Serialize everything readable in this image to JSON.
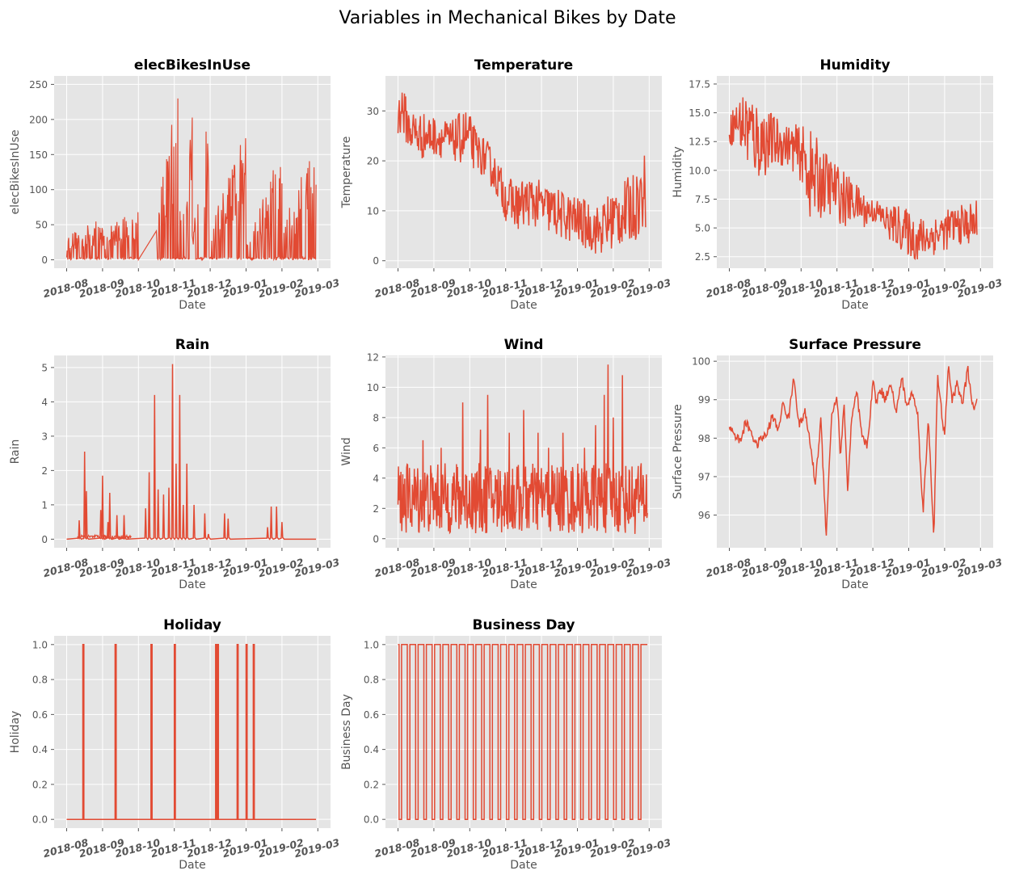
{
  "figure": {
    "title": "Variables in Mechanical Bikes by Date",
    "line_color": "#E24A33",
    "panel_bg": "#E5E5E5",
    "grid_color": "#FFFFFF",
    "label_color": "#555555"
  },
  "chart_data": [
    {
      "type": "line",
      "title": "elecBikesInUse",
      "xlabel": "Date",
      "ylabel": "elecBikesInUse",
      "xticks": [
        "2018-08",
        "2018-09",
        "2018-10",
        "2018-11",
        "2018-12",
        "2019-01",
        "2019-02",
        "2019-03"
      ],
      "yticks": [
        0,
        50,
        100,
        150,
        200,
        250
      ],
      "ylim": [
        -12,
        262
      ],
      "series": [
        {
          "segments": [
            {
              "x": [
                0.0,
                1.0
              ],
              "y": [
                [
                  0,
                  35
                ],
                [
                  0,
                  60
                ]
              ]
            },
            {
              "x": [
                1.0,
                2.0
              ],
              "y": [
                [
                  0,
                  40
                ],
                [
                  0,
                  85
                ]
              ]
            },
            {
              "x": [
                2.5,
                3.1
              ],
              "y": [
                [
                  0,
                  60
                ],
                [
                  0,
                  250
                ]
              ]
            },
            {
              "x": [
                3.1,
                3.5
              ],
              "y": [
                [
                  0,
                  50
                ],
                [
                  0,
                  232
                ]
              ]
            },
            {
              "x": [
                3.5,
                4.0
              ],
              "y": [
                [
                  0,
                  45
                ],
                [
                  0,
                  230
                ]
              ]
            },
            {
              "x": [
                4.0,
                5.0
              ],
              "y": [
                [
                  0,
                  50
                ],
                [
                  0,
                  190
                ]
              ]
            },
            {
              "x": [
                5.0,
                6.0
              ],
              "y": [
                [
                  0,
                  45
                ],
                [
                  0,
                  160
                ]
              ]
            },
            {
              "x": [
                6.0,
                6.95
              ],
              "y": [
                [
                  0,
                  45
                ],
                [
                  0,
                  180
                ]
              ]
            }
          ]
        }
      ],
      "grid": true
    },
    {
      "type": "line",
      "title": "Temperature",
      "xlabel": "Date",
      "ylabel": "Temperature",
      "xticks": [
        "2018-08",
        "2018-09",
        "2018-10",
        "2018-11",
        "2018-12",
        "2019-01",
        "2019-02",
        "2019-03"
      ],
      "yticks": [
        0,
        10,
        20,
        30
      ],
      "ylim": [
        -1.5,
        37
      ],
      "series": [
        {
          "x": [
            0.0,
            0.1,
            0.3,
            0.6,
            1.0,
            1.5,
            1.9,
            2.2,
            2.5,
            2.8,
            3.0,
            3.3,
            3.7,
            4.0,
            4.3,
            4.6,
            5.0,
            5.3,
            5.6,
            6.0,
            6.3,
            6.6,
            6.9
          ],
          "low": [
            24,
            26,
            22,
            20,
            21,
            20,
            19,
            18,
            16,
            12,
            8,
            6,
            7,
            6,
            5,
            4,
            3,
            2,
            1,
            2,
            3,
            4,
            6
          ],
          "high": [
            33,
            36,
            31,
            30,
            29,
            28,
            31,
            26,
            24,
            20,
            17,
            16,
            17,
            16,
            15,
            14,
            13,
            12,
            11,
            15,
            16,
            18,
            22
          ]
        }
      ],
      "grid": true
    },
    {
      "type": "line",
      "title": "Humidity",
      "xlabel": "Date",
      "ylabel": "Humidity",
      "xticks": [
        "2018-08",
        "2018-09",
        "2018-10",
        "2018-11",
        "2018-12",
        "2019-01",
        "2019-02",
        "2019-03"
      ],
      "yticks": [
        2.5,
        5.0,
        7.5,
        10.0,
        12.5,
        15.0,
        17.5
      ],
      "ylim": [
        1.5,
        18.2
      ],
      "series": [
        {
          "x": [
            0.0,
            0.2,
            0.5,
            0.8,
            1.2,
            1.6,
            2.0,
            2.3,
            2.6,
            2.9,
            3.2,
            3.5,
            3.8,
            4.1,
            4.4,
            4.8,
            5.2,
            5.6,
            6.0,
            6.3,
            6.6,
            6.9
          ],
          "low": [
            12,
            12.5,
            10,
            9,
            10,
            10.5,
            9,
            5,
            6,
            6,
            5,
            5.5,
            5,
            5.5,
            4,
            3,
            2,
            2.5,
            3,
            3.5,
            3.5,
            3.5
          ],
          "high": [
            15,
            16,
            17.5,
            16,
            15,
            14,
            14,
            13.5,
            12,
            11,
            10,
            9,
            8,
            7.5,
            7,
            7,
            6,
            6,
            6.5,
            7,
            7,
            7.5
          ]
        }
      ],
      "grid": true
    },
    {
      "type": "line",
      "title": "Rain",
      "xlabel": "Date",
      "ylabel": "Rain",
      "xticks": [
        "2018-08",
        "2018-09",
        "2018-10",
        "2018-11",
        "2018-12",
        "2019-01",
        "2019-02",
        "2019-03"
      ],
      "yticks": [
        0,
        1,
        2,
        3,
        4,
        5
      ],
      "ylim": [
        -0.25,
        5.35
      ],
      "series": [
        {
          "spikes": [
            {
              "x": 0.35,
              "y": 0.55
            },
            {
              "x": 0.5,
              "y": 2.55
            },
            {
              "x": 0.55,
              "y": 1.4
            },
            {
              "x": 0.95,
              "y": 0.85
            },
            {
              "x": 1.0,
              "y": 1.85
            },
            {
              "x": 1.15,
              "y": 0.5
            },
            {
              "x": 1.2,
              "y": 1.35
            },
            {
              "x": 1.4,
              "y": 0.7
            },
            {
              "x": 1.6,
              "y": 0.7
            },
            {
              "x": 2.2,
              "y": 0.9
            },
            {
              "x": 2.3,
              "y": 1.95
            },
            {
              "x": 2.45,
              "y": 4.2
            },
            {
              "x": 2.55,
              "y": 1.45
            },
            {
              "x": 2.7,
              "y": 1.3
            },
            {
              "x": 2.85,
              "y": 1.5
            },
            {
              "x": 2.95,
              "y": 5.1
            },
            {
              "x": 3.05,
              "y": 2.2
            },
            {
              "x": 3.15,
              "y": 4.2
            },
            {
              "x": 3.25,
              "y": 1.0
            },
            {
              "x": 3.35,
              "y": 2.2
            },
            {
              "x": 3.55,
              "y": 1.0
            },
            {
              "x": 3.85,
              "y": 0.75
            },
            {
              "x": 3.95,
              "y": 0.15
            },
            {
              "x": 4.4,
              "y": 0.75
            },
            {
              "x": 4.5,
              "y": 0.6
            },
            {
              "x": 5.6,
              "y": 0.35
            },
            {
              "x": 5.7,
              "y": 0.95
            },
            {
              "x": 5.85,
              "y": 0.95
            },
            {
              "x": 6.0,
              "y": 0.5
            }
          ]
        }
      ],
      "grid": true
    },
    {
      "type": "line",
      "title": "Wind",
      "xlabel": "Date",
      "ylabel": "Wind",
      "xticks": [
        "2018-08",
        "2018-09",
        "2018-10",
        "2018-11",
        "2018-12",
        "2019-01",
        "2019-02",
        "2019-03"
      ],
      "yticks": [
        0,
        2,
        4,
        6,
        8,
        10,
        12
      ],
      "ylim": [
        -0.6,
        12.1
      ],
      "series": [
        {
          "spikes": [
            {
              "x": 0.7,
              "y": 6.5
            },
            {
              "x": 1.2,
              "y": 6.0
            },
            {
              "x": 1.8,
              "y": 9.0
            },
            {
              "x": 2.3,
              "y": 7.2
            },
            {
              "x": 2.5,
              "y": 9.5
            },
            {
              "x": 3.1,
              "y": 7.0
            },
            {
              "x": 3.5,
              "y": 8.5
            },
            {
              "x": 3.9,
              "y": 7.0
            },
            {
              "x": 4.2,
              "y": 6.0
            },
            {
              "x": 4.6,
              "y": 7.0
            },
            {
              "x": 5.2,
              "y": 6.0
            },
            {
              "x": 5.5,
              "y": 7.5
            },
            {
              "x": 5.75,
              "y": 9.5
            },
            {
              "x": 5.85,
              "y": 11.5
            },
            {
              "x": 6.0,
              "y": 8.0
            },
            {
              "x": 6.25,
              "y": 10.8
            },
            {
              "x": 6.7,
              "y": 4.8
            }
          ],
          "band": {
            "low": 0.3,
            "high": 5.0
          }
        }
      ],
      "grid": true
    },
    {
      "type": "line",
      "title": "Surface Pressure",
      "xlabel": "Date",
      "ylabel": "Surface Pressure",
      "xticks": [
        "2018-08",
        "2018-09",
        "2018-10",
        "2018-11",
        "2018-12",
        "2019-01",
        "2019-02",
        "2019-03"
      ],
      "yticks": [
        96,
        97,
        98,
        99,
        100
      ],
      "ylim": [
        95.15,
        100.15
      ],
      "series": [
        {
          "x": [
            0.0,
            0.15,
            0.3,
            0.45,
            0.6,
            0.75,
            0.9,
            1.05,
            1.2,
            1.35,
            1.5,
            1.65,
            1.8,
            1.95,
            2.1,
            2.25,
            2.4,
            2.55,
            2.7,
            2.85,
            3.0,
            3.1,
            3.2,
            3.3,
            3.4,
            3.55,
            3.7,
            3.85,
            4.0,
            4.1,
            4.2,
            4.35,
            4.5,
            4.65,
            4.8,
            4.95,
            5.1,
            5.25,
            5.4,
            5.55,
            5.7,
            5.8,
            5.9,
            6.0,
            6.1,
            6.2,
            6.35,
            6.5,
            6.65,
            6.8,
            6.9
          ],
          "y": [
            98.3,
            98.1,
            97.9,
            98.4,
            98.2,
            97.8,
            98.0,
            98.1,
            98.6,
            98.2,
            98.9,
            98.5,
            99.6,
            98.3,
            98.7,
            97.9,
            96.8,
            98.5,
            95.5,
            98.6,
            99.1,
            97.5,
            98.9,
            96.6,
            98.4,
            99.2,
            98.0,
            97.8,
            99.5,
            98.9,
            99.3,
            99.0,
            99.5,
            98.6,
            99.6,
            98.8,
            99.2,
            98.6,
            96.1,
            98.5,
            95.4,
            99.6,
            98.8,
            98.0,
            99.9,
            99.0,
            99.4,
            98.9,
            99.8,
            98.7,
            98.9
          ]
        }
      ],
      "grid": true
    },
    {
      "type": "line",
      "title": "Holiday",
      "xlabel": "Date",
      "ylabel": "Holiday",
      "xticks": [
        "2018-08",
        "2018-09",
        "2018-10",
        "2018-11",
        "2018-12",
        "2019-01",
        "2019-02",
        "2019-03"
      ],
      "yticks": [
        0.0,
        0.2,
        0.4,
        0.6,
        0.8,
        1.0
      ],
      "ylim": [
        -0.05,
        1.05
      ],
      "series": [
        {
          "steps": [
            0.45,
            1.35,
            2.35,
            3.0,
            4.15,
            4.2,
            4.75,
            5.0,
            5.2
          ]
        }
      ],
      "grid": true
    },
    {
      "type": "line",
      "title": "Business Day",
      "xlabel": "Date",
      "ylabel": "Business Day",
      "xticks": [
        "2018-08",
        "2018-09",
        "2018-10",
        "2018-11",
        "2018-12",
        "2019-01",
        "2019-02",
        "2019-03"
      ],
      "yticks": [
        0.0,
        0.2,
        0.4,
        0.6,
        0.8,
        1.0
      ],
      "ylim": [
        -0.05,
        1.05
      ],
      "series": [
        {
          "weekly": true,
          "x_start": 0.0,
          "x_end": 6.95
        }
      ],
      "grid": true
    }
  ]
}
